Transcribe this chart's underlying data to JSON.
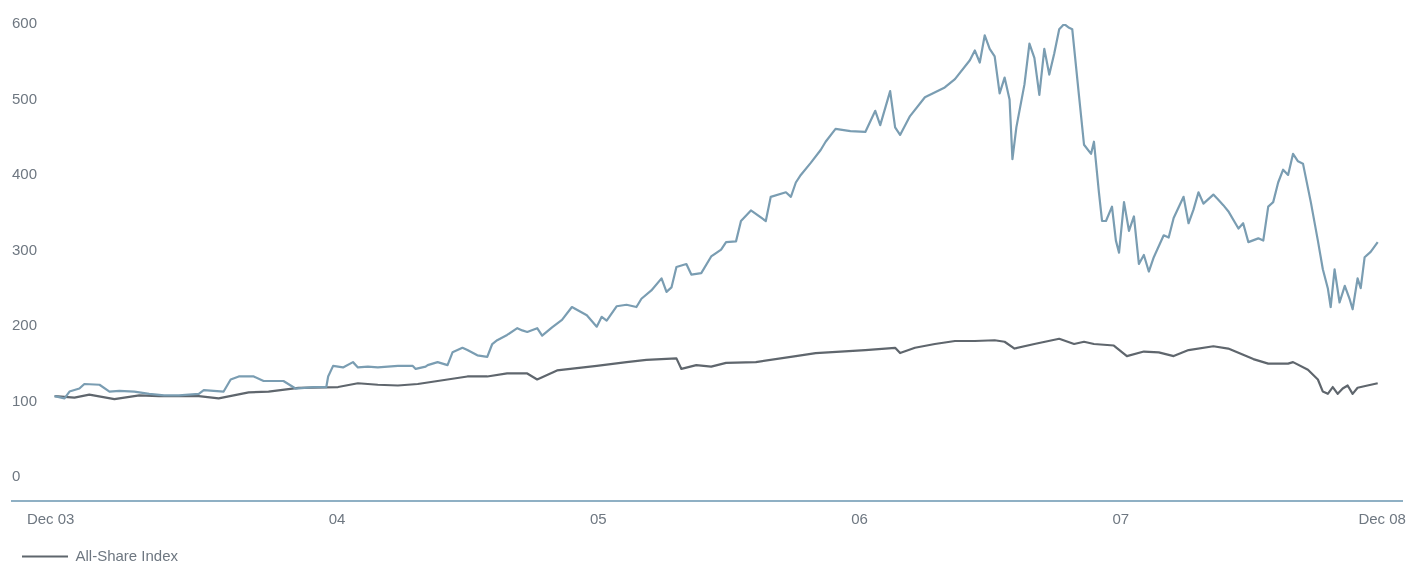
{
  "chart_data": {
    "type": "line",
    "xlim": [
      2.756,
      8.078
    ],
    "xticks": [
      {
        "value": 2.904,
        "label": "Dec 03"
      },
      {
        "value": 4,
        "label": "04"
      },
      {
        "value": 5,
        "label": "05"
      },
      {
        "value": 6,
        "label": "06"
      },
      {
        "value": 7,
        "label": "07"
      },
      {
        "value": 8,
        "label": "Dec 08"
      }
    ],
    "ylim": [
      -32,
      600
    ],
    "yticks": [
      0,
      100,
      200,
      300,
      400,
      500,
      600
    ],
    "legend": "bottom left",
    "series": [
      {
        "color": "#7a9db2",
        "x": [
          2.919,
          2.957,
          2.976,
          3.014,
          3.033,
          3.091,
          3.129,
          3.167,
          3.224,
          3.281,
          3.338,
          3.395,
          3.471,
          3.49,
          3.528,
          3.566,
          3.593,
          3.624,
          3.681,
          3.719,
          3.795,
          3.841,
          3.909,
          3.959,
          3.966,
          3.985,
          4.023,
          4.061,
          4.08,
          4.118,
          4.156,
          4.233,
          4.29,
          4.301,
          4.339,
          4.347,
          4.385,
          4.423,
          4.442,
          4.48,
          4.499,
          4.537,
          4.575,
          4.594,
          4.613,
          4.651,
          4.69,
          4.709,
          4.728,
          4.766,
          4.785,
          4.823,
          4.861,
          4.899,
          4.956,
          4.994,
          5.013,
          5.032,
          5.07,
          5.108,
          5.146,
          5.165,
          5.203,
          5.242,
          5.261,
          5.28,
          5.299,
          5.337,
          5.356,
          5.394,
          5.432,
          5.47,
          5.489,
          5.527,
          5.546,
          5.584,
          5.641,
          5.66,
          5.718,
          5.737,
          5.756,
          5.775,
          5.813,
          5.851,
          5.87,
          5.908,
          5.965,
          6.022,
          6.06,
          6.079,
          6.117,
          6.136,
          6.155,
          6.193,
          6.25,
          6.326,
          6.365,
          6.422,
          6.441,
          6.46,
          6.479,
          6.498,
          6.517,
          6.536,
          6.555,
          6.574,
          6.585,
          6.6,
          6.631,
          6.65,
          6.669,
          6.688,
          6.707,
          6.726,
          6.745,
          6.764,
          6.783,
          6.802,
          6.814,
          6.84,
          6.859,
          6.886,
          6.897,
          6.916,
          6.928,
          6.943,
          6.966,
          6.981,
          6.993,
          7.012,
          7.031,
          7.05,
          7.069,
          7.088,
          7.107,
          7.126,
          7.164,
          7.183,
          7.202,
          7.24,
          7.259,
          7.278,
          7.297,
          7.316,
          7.354,
          7.373,
          7.392,
          7.411,
          7.45,
          7.468,
          7.488,
          7.526,
          7.545,
          7.564,
          7.583,
          7.602,
          7.621,
          7.64,
          7.659,
          7.678,
          7.697,
          7.727,
          7.754,
          7.773,
          7.792,
          7.803,
          7.818,
          7.837,
          7.857,
          7.876,
          7.887,
          7.906,
          7.918,
          7.933,
          7.956,
          7.983
        ],
        "values": [
          107,
          104,
          113,
          117,
          123,
          122,
          113,
          114,
          113,
          110,
          108,
          108,
          110,
          115,
          114,
          113,
          129,
          133,
          133,
          127,
          127,
          117,
          119,
          119,
          133,
          147,
          145,
          152,
          145,
          146,
          145,
          147,
          147,
          143,
          146,
          148,
          152,
          148,
          165,
          171,
          168,
          161,
          159,
          176,
          181,
          188,
          197,
          194,
          192,
          197,
          187,
          198,
          208,
          225,
          214,
          199,
          212,
          207,
          226,
          228,
          225,
          236,
          247,
          263,
          245,
          251,
          278,
          282,
          268,
          270,
          292,
          301,
          311,
          312,
          339,
          353,
          339,
          371,
          377,
          371,
          390,
          400,
          416,
          433,
          444,
          461,
          458,
          457,
          485,
          466,
          511,
          463,
          453,
          478,
          503,
          516,
          527,
          552,
          565,
          549,
          585,
          567,
          557,
          508,
          529,
          500,
          421,
          463,
          520,
          574,
          555,
          506,
          567,
          533,
          561,
          593,
          600,
          595,
          593,
          504,
          440,
          428,
          444,
          377,
          339,
          339,
          358,
          313,
          297,
          364,
          326,
          345,
          282,
          294,
          272,
          291,
          320,
          317,
          343,
          371,
          336,
          354,
          377,
          362,
          374,
          367,
          360,
          352,
          329,
          336,
          311,
          316,
          313,
          358,
          364,
          390,
          407,
          400,
          428,
          418,
          415,
          364,
          313,
          275,
          250,
          225,
          275,
          231,
          253,
          235,
          222,
          263,
          250,
          291,
          298,
          311
        ]
      },
      {
        "name": "All-Share Index",
        "color": "#5f666d",
        "x": [
          2.919,
          2.995,
          3.052,
          3.148,
          3.243,
          3.319,
          3.471,
          3.547,
          3.662,
          3.738,
          3.852,
          4.004,
          4.08,
          4.156,
          4.233,
          4.309,
          4.423,
          4.499,
          4.575,
          4.651,
          4.728,
          4.766,
          4.842,
          4.994,
          5.108,
          5.184,
          5.299,
          5.318,
          5.375,
          5.432,
          5.489,
          5.603,
          5.756,
          5.832,
          5.927,
          6.022,
          6.136,
          6.155,
          6.212,
          6.288,
          6.365,
          6.441,
          6.517,
          6.555,
          6.593,
          6.669,
          6.764,
          6.821,
          6.859,
          6.897,
          6.973,
          7.023,
          7.088,
          7.145,
          7.202,
          7.259,
          7.354,
          7.411,
          7.507,
          7.564,
          7.64,
          7.659,
          7.716,
          7.754,
          7.773,
          7.792,
          7.811,
          7.83,
          7.849,
          7.868,
          7.887,
          7.906,
          7.944,
          7.983
        ],
        "values": [
          107,
          105,
          109,
          103,
          108,
          107,
          107,
          104,
          112,
          113,
          118,
          119,
          124,
          122,
          121,
          123,
          129,
          133,
          133,
          137,
          137,
          129,
          141,
          147,
          152,
          155,
          157,
          143,
          148,
          146,
          151,
          152,
          160,
          164,
          166,
          168,
          171,
          164,
          171,
          176,
          180,
          180,
          181,
          179,
          170,
          176,
          183,
          176,
          179,
          176,
          174,
          160,
          166,
          165,
          160,
          168,
          173,
          170,
          156,
          150,
          150,
          152,
          142,
          129,
          113,
          110,
          119,
          110,
          117,
          121,
          110,
          118,
          121,
          124
        ]
      }
    ]
  }
}
